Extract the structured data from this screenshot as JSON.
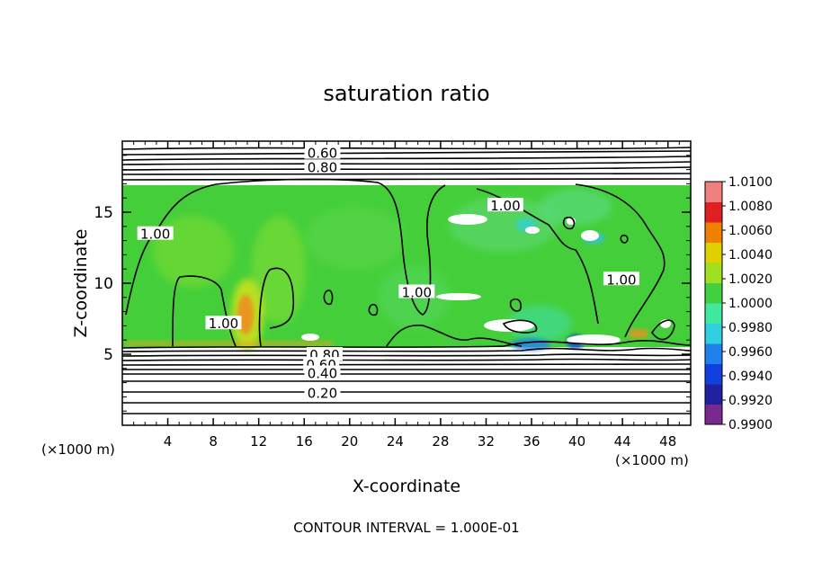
{
  "chart_data": {
    "type": "heatmap",
    "title": "saturation ratio",
    "xlabel": "X-coordinate",
    "ylabel": "Z-coordinate",
    "x_unit_left": "(×1000 m)",
    "x_unit_right": "(×1000 m)",
    "xlim": [
      0,
      50
    ],
    "ylim": [
      0,
      20
    ],
    "x_ticks": [
      4,
      8,
      12,
      16,
      20,
      24,
      28,
      32,
      36,
      40,
      44,
      48
    ],
    "y_ticks": [
      5,
      10,
      15
    ],
    "footer": "CONTOUR INTERVAL = 1.000E-01",
    "colorbar": {
      "min": 0.99,
      "max": 1.01,
      "labels": [
        "1.0100",
        "1.0080",
        "1.0060",
        "1.0040",
        "1.0020",
        "1.0000",
        "0.9980",
        "0.9960",
        "0.9940",
        "0.9920",
        "0.9900"
      ],
      "colors": [
        "#7a2a8e",
        "#2020a0",
        "#1040e0",
        "#2080f0",
        "#30d0e0",
        "#40e8a0",
        "#40d040",
        "#a0e020",
        "#e0d000",
        "#f08000",
        "#e02020",
        "#f08080"
      ]
    },
    "field_region": {
      "x": [
        0,
        50
      ],
      "z": [
        5.5,
        16.9
      ]
    },
    "contour_labels": [
      {
        "text": "0.60",
        "x": 17.6,
        "z": 19.2
      },
      {
        "text": "0.80",
        "x": 17.6,
        "z": 18.2
      },
      {
        "text": "1.00",
        "x": 2.9,
        "z": 13.5
      },
      {
        "text": "1.00",
        "x": 8.9,
        "z": 7.2
      },
      {
        "text": "1.00",
        "x": 25.9,
        "z": 9.4
      },
      {
        "text": "1.00",
        "x": 33.7,
        "z": 15.5
      },
      {
        "text": "1.00",
        "x": 43.9,
        "z": 10.3
      },
      {
        "text": "0.80",
        "x": 17.8,
        "z": 5.0
      },
      {
        "text": "0.60",
        "x": 17.5,
        "z": 4.3
      },
      {
        "text": "0.40",
        "x": 17.6,
        "z": 3.7
      },
      {
        "text": "0.20",
        "x": 17.6,
        "z": 2.3
      }
    ]
  }
}
